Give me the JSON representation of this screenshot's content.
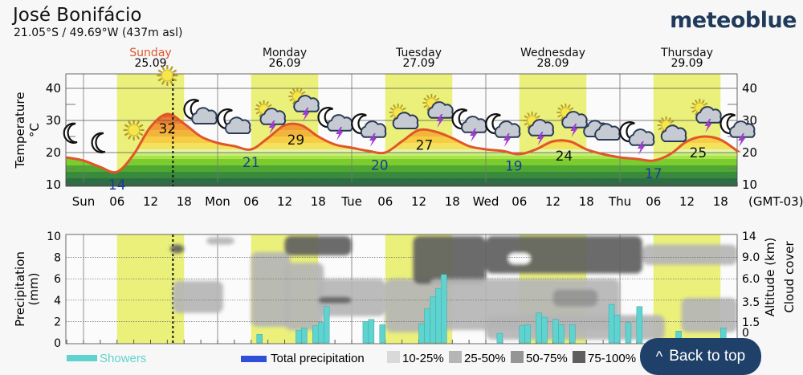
{
  "header": {
    "location": "José Bonifácio",
    "coordinates": "21.05°S / 49.69°W (437m asl)",
    "logo": "meteoblue"
  },
  "back_to_top": {
    "icon": "chevron-up-icon",
    "glyph": "^",
    "label": "Back to top"
  },
  "colors": {
    "temperature_line": "#e0562a",
    "daylight": "#eaf07a",
    "showers": "#5fd3d0",
    "total_precipitation": "#2f4fd8",
    "highlight_day": "#e0562a",
    "button": "#1f4068"
  },
  "chart_data": [
    {
      "type": "line",
      "title": "Temperature",
      "ylabel": "Temperature",
      "yunit": "°C",
      "ylim": [
        10,
        44
      ],
      "yticks": [
        10,
        20,
        30,
        40
      ],
      "timezone": "(GMT-03)",
      "x_tick_labels": [
        "Sun",
        "06",
        "12",
        "18",
        "Mon",
        "06",
        "12",
        "18",
        "Tue",
        "06",
        "12",
        "18",
        "Wed",
        "06",
        "12",
        "18",
        "Thu",
        "06",
        "12",
        "18"
      ],
      "days": [
        {
          "name": "Sunday",
          "date": "25.09",
          "highlight": true
        },
        {
          "name": "Monday",
          "date": "26.09",
          "highlight": false
        },
        {
          "name": "Tuesday",
          "date": "27.09",
          "highlight": false
        },
        {
          "name": "Wednesday",
          "date": "28.09",
          "highlight": false
        },
        {
          "name": "Thursday",
          "date": "29.09",
          "highlight": false
        }
      ],
      "current_time_hour": 16,
      "xlabel_note": "hours since Sunday 00:00",
      "series": [
        {
          "name": "Temperature",
          "x": [
            -3,
            0,
            3,
            6,
            9,
            12,
            15,
            18,
            21,
            24,
            27,
            30,
            33,
            36,
            39,
            42,
            45,
            48,
            51,
            54,
            57,
            60,
            63,
            66,
            69,
            72,
            75,
            78,
            81,
            84,
            87,
            90,
            93,
            96,
            99,
            102,
            105,
            108,
            111,
            114,
            117
          ],
          "values": [
            18.5,
            17.5,
            15.5,
            14,
            19.5,
            28,
            32,
            29,
            25,
            23,
            22,
            21,
            24.5,
            28.5,
            28.5,
            25,
            22.5,
            21.5,
            20.5,
            20,
            23.5,
            27,
            26.5,
            24.5,
            22,
            21,
            20.5,
            19.5,
            21,
            23.5,
            23.5,
            21,
            19.5,
            18.5,
            18,
            17.5,
            19.5,
            23.5,
            25,
            24,
            20.5
          ]
        }
      ],
      "extremes": [
        {
          "hour": 6,
          "value": "14",
          "kind": "min"
        },
        {
          "hour": 15,
          "value": "32",
          "kind": "max"
        },
        {
          "hour": 30,
          "value": "21",
          "kind": "min"
        },
        {
          "hour": 38,
          "value": "29",
          "kind": "max"
        },
        {
          "hour": 53,
          "value": "20",
          "kind": "min"
        },
        {
          "hour": 61,
          "value": "27",
          "kind": "max"
        },
        {
          "hour": 77,
          "value": "19",
          "kind": "min"
        },
        {
          "hour": 86,
          "value": "24",
          "kind": "max"
        },
        {
          "hour": 102,
          "value": "17",
          "kind": "min"
        },
        {
          "hour": 110,
          "value": "25",
          "kind": "max"
        }
      ],
      "weather_icons": [
        {
          "hour": -3,
          "type": "moon"
        },
        {
          "hour": 3,
          "type": "moon"
        },
        {
          "hour": 9,
          "type": "sun"
        },
        {
          "hour": 15,
          "type": "sun"
        },
        {
          "hour": 21,
          "type": "moon-cloud"
        },
        {
          "hour": 27,
          "type": "moon-cloud"
        },
        {
          "hour": 33,
          "type": "sun-cloud-thunder"
        },
        {
          "hour": 39,
          "type": "sun-cloud-thunder"
        },
        {
          "hour": 45,
          "type": "moon-cloud-thunder"
        },
        {
          "hour": 51,
          "type": "moon-cloud-thunder"
        },
        {
          "hour": 57,
          "type": "sun-cloud"
        },
        {
          "hour": 63,
          "type": "sun-cloud-thunder"
        },
        {
          "hour": 69,
          "type": "moon-cloud-thunder"
        },
        {
          "hour": 75,
          "type": "moon-cloud-thunder"
        },
        {
          "hour": 81,
          "type": "sun-cloud-thunder"
        },
        {
          "hour": 87,
          "type": "sun-cloud-thunder"
        },
        {
          "hour": 93,
          "type": "cloud"
        },
        {
          "hour": 99,
          "type": "moon-cloud-thunder"
        },
        {
          "hour": 105,
          "type": "sun-cloud"
        },
        {
          "hour": 111,
          "type": "sun-cloud-thunder"
        },
        {
          "hour": 117,
          "type": "moon-cloud-thunder"
        }
      ]
    },
    {
      "type": "bar",
      "title": "Precipitation and cloud cover",
      "ylabel": "Precipitation (mm)",
      "ylim": [
        0,
        10
      ],
      "yticks": [
        0,
        2,
        4,
        6,
        8,
        10
      ],
      "right_axis_label_1": "Altitude (km)",
      "right_axis_label_2": "Cloud cover",
      "right_ticks": [
        "0",
        "1.5",
        "3.5",
        "6.0",
        "9.0",
        "14"
      ],
      "showers": {
        "hour": [
          31,
          38,
          39,
          41,
          42,
          43,
          44,
          50,
          51,
          53,
          60,
          61,
          62,
          63,
          64,
          65,
          74,
          78,
          79,
          81,
          82,
          84,
          85,
          87,
          94,
          95,
          97,
          99,
          106,
          114
        ],
        "values": [
          0.8,
          1.2,
          1.4,
          1.6,
          1.9,
          3.4,
          0,
          2.0,
          2.2,
          1.7,
          1.8,
          3.2,
          4.3,
          5.1,
          6.4,
          0,
          0.9,
          1.6,
          1.7,
          2.8,
          2.4,
          2.2,
          1.7,
          1.7,
          3.6,
          2.6,
          1.9,
          3.4,
          1.1,
          1.4
        ]
      },
      "total_precipitation": [],
      "cloud_regions": [
        {
          "from": 15.5,
          "to": 18,
          "low": 8.4,
          "high": 9.2,
          "level": 3
        },
        {
          "from": 16,
          "to": 25,
          "low": 2.8,
          "high": 5.8,
          "level": 1
        },
        {
          "from": 22,
          "to": 27,
          "low": 9.2,
          "high": 9.9,
          "level": 1
        },
        {
          "from": 30,
          "to": 37,
          "low": 1.5,
          "high": 8.5,
          "level": 1
        },
        {
          "from": 36,
          "to": 43,
          "low": 1.2,
          "high": 7.5,
          "level": 1
        },
        {
          "from": 36,
          "to": 48,
          "low": 8.2,
          "high": 10,
          "level": 3
        },
        {
          "from": 42,
          "to": 54,
          "low": 2.5,
          "high": 6,
          "level": 1
        },
        {
          "from": 42,
          "to": 48,
          "low": 3.7,
          "high": 4.3,
          "level": 3
        },
        {
          "from": 54,
          "to": 62,
          "low": 1.0,
          "high": 6,
          "level": 1
        },
        {
          "from": 59,
          "to": 72,
          "low": 5.5,
          "high": 10,
          "level": 3
        },
        {
          "from": 72,
          "to": 100,
          "low": 6.5,
          "high": 10,
          "level": 3
        },
        {
          "from": 76,
          "to": 80,
          "low": 7.4,
          "high": 8.4,
          "level": 0
        },
        {
          "from": 62,
          "to": 96,
          "low": 1.2,
          "high": 6,
          "level": 1
        },
        {
          "from": 84,
          "to": 92,
          "low": 3.4,
          "high": 5,
          "level": 2
        },
        {
          "from": 72,
          "to": 104,
          "low": 0.3,
          "high": 2.6,
          "level": 1
        },
        {
          "from": 100,
          "to": 117,
          "low": 7.3,
          "high": 9.2,
          "level": 1
        },
        {
          "from": 107,
          "to": 117,
          "low": 1.0,
          "high": 4.2,
          "level": 1
        }
      ]
    }
  ],
  "legend": {
    "showers": "Showers",
    "total_precipitation": "Total precipitation",
    "cloud_levels": [
      {
        "label": "10-25%",
        "color": "#d9d9d9"
      },
      {
        "label": "25-50%",
        "color": "#b5b5b5"
      },
      {
        "label": "50-75%",
        "color": "#959595"
      },
      {
        "label": "75-100%",
        "color": "#5e5e5e"
      }
    ]
  }
}
